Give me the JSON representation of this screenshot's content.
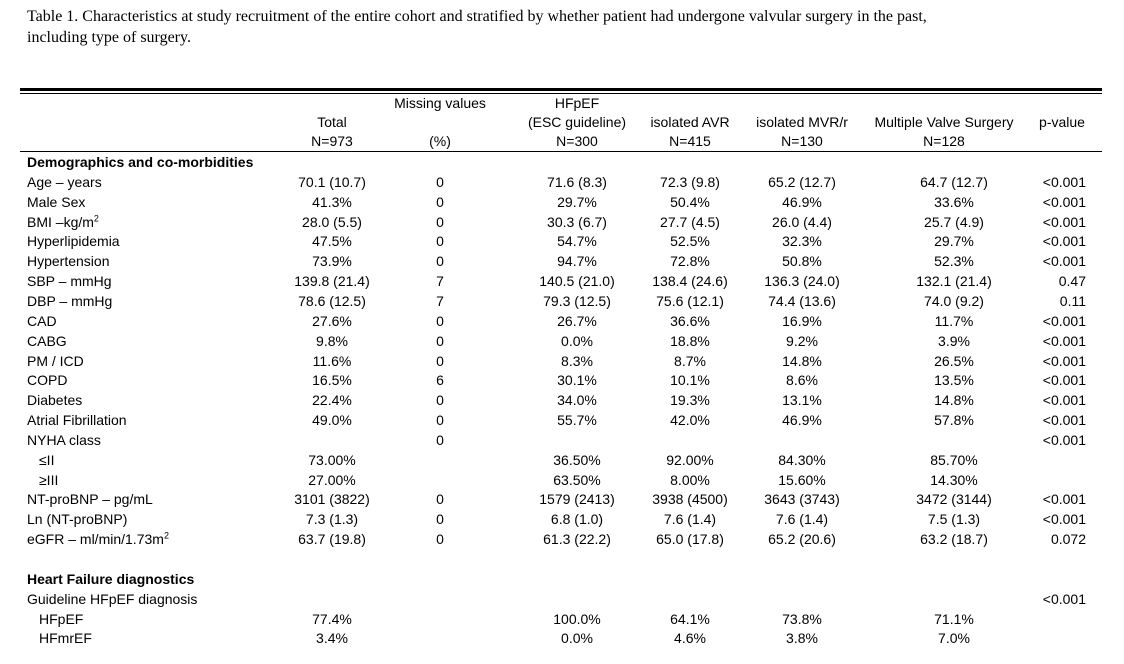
{
  "caption_line1": "Table 1. Characteristics at study recruitment of the entire cohort and stratified by whether patient had undergone valvular surgery in the past,",
  "caption_line2": "including type of surgery.",
  "columns": {
    "total": {
      "l1": "",
      "l2": "Total",
      "l3": "N=973"
    },
    "missing": {
      "l1": "Missing values",
      "l2": "",
      "l3": "(%)"
    },
    "hfpef": {
      "l1": "HFpEF",
      "l2": "(ESC guideline)",
      "l3": "N=300"
    },
    "avr": {
      "l1": "",
      "l2": "isolated AVR",
      "l3": "N=415"
    },
    "mvr": {
      "l1": "",
      "l2": "isolated MVR/r",
      "l3": "N=130"
    },
    "multi": {
      "l1": "",
      "l2": "Multiple Valve Surgery",
      "l3": "N=128"
    },
    "p": {
      "l1": "",
      "l2": "p-value",
      "l3": ""
    }
  },
  "rows": [
    {
      "label": "Demographics and co-morbidities",
      "section": true
    },
    {
      "label": "Age – years",
      "total": "70.1 (10.7)",
      "missing": "0",
      "hfpef": "71.6 (8.3)",
      "avr": "72.3 (9.8)",
      "mvr": "65.2 (12.7)",
      "multi": "64.7 (12.7)",
      "p": "<0.001"
    },
    {
      "label": "Male Sex",
      "total": "41.3%",
      "missing": "0",
      "hfpef": "29.7%",
      "avr": "50.4%",
      "mvr": "46.9%",
      "multi": "33.6%",
      "p": "<0.001"
    },
    {
      "label": "BMI –kg/m",
      "sup": "2",
      "total": "28.0 (5.5)",
      "missing": "0",
      "hfpef": "30.3 (6.7)",
      "avr": "27.7 (4.5)",
      "mvr": "26.0 (4.4)",
      "multi": "25.7 (4.9)",
      "p": "<0.001"
    },
    {
      "label": "Hyperlipidemia",
      "total": "47.5%",
      "missing": "0",
      "hfpef": "54.7%",
      "avr": "52.5%",
      "mvr": "32.3%",
      "multi": "29.7%",
      "p": "<0.001"
    },
    {
      "label": "Hypertension",
      "total": "73.9%",
      "missing": "0",
      "hfpef": "94.7%",
      "avr": "72.8%",
      "mvr": "50.8%",
      "multi": "52.3%",
      "p": "<0.001"
    },
    {
      "label": "SBP – mmHg",
      "total": "139.8 (21.4)",
      "missing": "7",
      "hfpef": "140.5 (21.0)",
      "avr": "138.4 (24.6)",
      "mvr": "136.3 (24.0)",
      "multi": "132.1 (21.4)",
      "p": "0.47"
    },
    {
      "label": "DBP – mmHg",
      "total": "78.6 (12.5)",
      "missing": "7",
      "hfpef": "79.3 (12.5)",
      "avr": "75.6 (12.1)",
      "mvr": "74.4 (13.6)",
      "multi": "74.0 (9.2)",
      "p": "0.11"
    },
    {
      "label": "CAD",
      "total": "27.6%",
      "missing": "0",
      "hfpef": "26.7%",
      "avr": "36.6%",
      "mvr": "16.9%",
      "multi": "11.7%",
      "p": "<0.001"
    },
    {
      "label": "CABG",
      "total": "9.8%",
      "missing": "0",
      "hfpef": "0.0%",
      "avr": "18.8%",
      "mvr": "9.2%",
      "multi": "3.9%",
      "p": "<0.001"
    },
    {
      "label": "PM / ICD",
      "total": "11.6%",
      "missing": "0",
      "hfpef": "8.3%",
      "avr": "8.7%",
      "mvr": "14.8%",
      "multi": "26.5%",
      "p": "<0.001"
    },
    {
      "label": "COPD",
      "total": "16.5%",
      "missing": "6",
      "hfpef": "30.1%",
      "avr": "10.1%",
      "mvr": "8.6%",
      "multi": "13.5%",
      "p": "<0.001"
    },
    {
      "label": "Diabetes",
      "total": "22.4%",
      "missing": "0",
      "hfpef": "34.0%",
      "avr": "19.3%",
      "mvr": "13.1%",
      "multi": "14.8%",
      "p": "<0.001"
    },
    {
      "label": "Atrial Fibrillation",
      "total": "49.0%",
      "missing": "0",
      "hfpef": "55.7%",
      "avr": "42.0%",
      "mvr": "46.9%",
      "multi": "57.8%",
      "p": "<0.001"
    },
    {
      "label": "NYHA class",
      "total": "",
      "missing": "0",
      "hfpef": "",
      "avr": "",
      "mvr": "",
      "multi": "",
      "p": "<0.001"
    },
    {
      "label": "≤II",
      "indent": true,
      "total": "73.00%",
      "missing": "",
      "hfpef": "36.50%",
      "avr": "92.00%",
      "mvr": "84.30%",
      "multi": "85.70%",
      "p": ""
    },
    {
      "label": "≥III",
      "indent": true,
      "total": "27.00%",
      "missing": "",
      "hfpef": "63.50%",
      "avr": "8.00%",
      "mvr": "15.60%",
      "multi": "14.30%",
      "p": ""
    },
    {
      "label": "NT-proBNP – pg/mL",
      "total": "3101 (3822)",
      "missing": "0",
      "hfpef": "1579 (2413)",
      "avr": "3938 (4500)",
      "mvr": "3643 (3743)",
      "multi": "3472 (3144)",
      "p": "<0.001"
    },
    {
      "label": "Ln (NT-proBNP)",
      "total": "7.3 (1.3)",
      "missing": "0",
      "hfpef": "6.8 (1.0)",
      "avr": "7.6 (1.4)",
      "mvr": "7.6 (1.4)",
      "multi": "7.5 (1.3)",
      "p": "<0.001"
    },
    {
      "label": "eGFR – ml/min/1.73m",
      "sup": "2",
      "total": "63.7 (19.8)",
      "missing": "0",
      "hfpef": "61.3 (22.2)",
      "avr": "65.0 (17.8)",
      "mvr": "65.2 (20.6)",
      "multi": "63.2 (18.7)",
      "p": "0.072"
    },
    {
      "label": "",
      "blank": true
    },
    {
      "label": "Heart Failure diagnostics",
      "section": true
    },
    {
      "label": "Guideline HFpEF diagnosis",
      "total": "",
      "missing": "",
      "hfpef": "",
      "avr": "",
      "mvr": "",
      "multi": "",
      "p": "<0.001"
    },
    {
      "label": "HFpEF",
      "indent": true,
      "total": "77.4%",
      "missing": "",
      "hfpef": "100.0%",
      "avr": "64.1%",
      "mvr": "73.8%",
      "multi": "71.1%",
      "p": ""
    },
    {
      "label": "HFmrEF",
      "indent": true,
      "total": "3.4%",
      "missing": "",
      "hfpef": "0.0%",
      "avr": "4.6%",
      "mvr": "3.8%",
      "multi": "7.0%",
      "p": ""
    }
  ]
}
